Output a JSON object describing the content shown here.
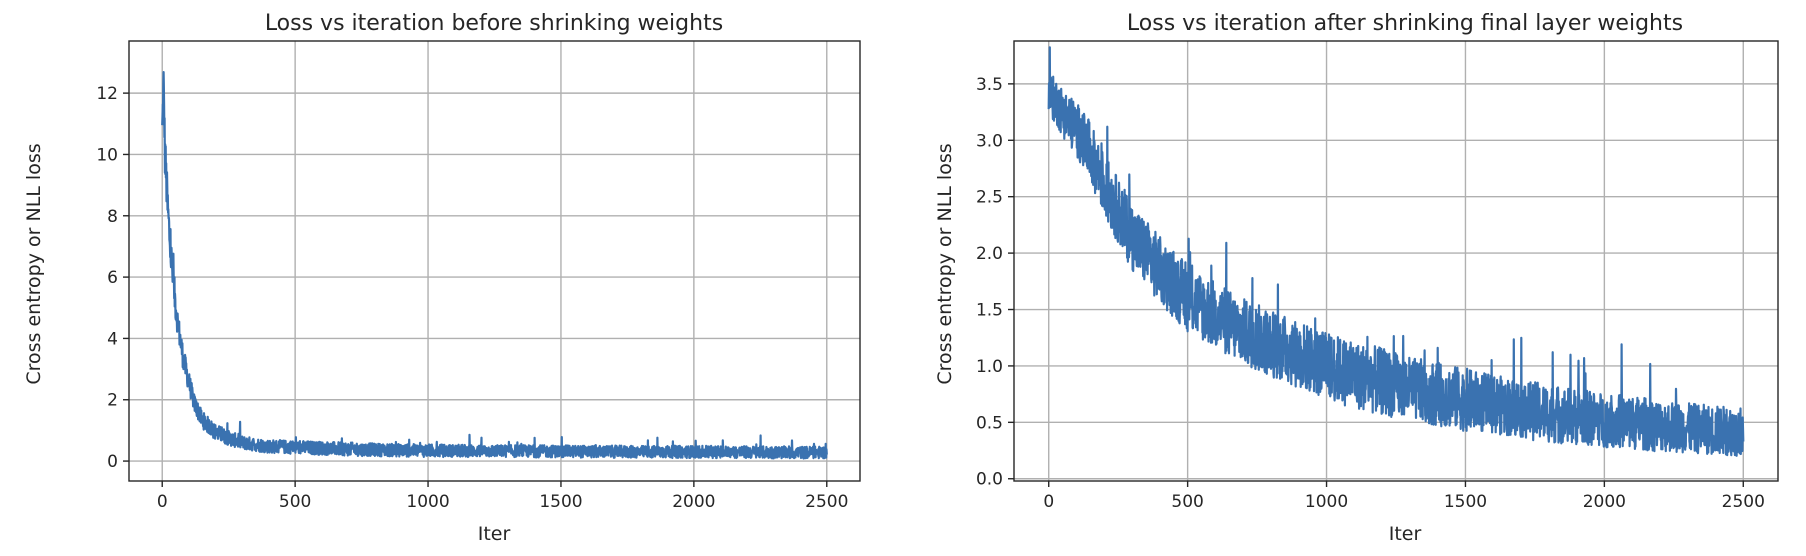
{
  "chart_data": [
    {
      "type": "line",
      "title": "Loss vs iteration before shrinking weights",
      "xlabel": "Iter",
      "ylabel": "Cross entropy or NLL loss",
      "xlim": [
        -125,
        2625
      ],
      "ylim": [
        -0.65,
        13.7
      ],
      "xticks": [
        0,
        500,
        1000,
        1500,
        2000,
        2500
      ],
      "xtick_labels": [
        "0",
        "500",
        "1000",
        "1500",
        "2000",
        "2500"
      ],
      "yticks": [
        0,
        2,
        4,
        6,
        8,
        10,
        12
      ],
      "ytick_labels": [
        "0",
        "2",
        "4",
        "6",
        "8",
        "10",
        "12"
      ],
      "grid": true,
      "color": "#3a72b0",
      "series": [
        {
          "x": [
            0,
            5,
            10,
            15,
            20,
            30,
            40,
            50,
            60,
            80,
            100,
            120,
            150,
            200,
            250,
            300,
            400,
            500,
            600,
            700,
            800,
            900,
            1000,
            1200,
            1400,
            1600,
            1800,
            2000,
            2200,
            2400,
            2500
          ],
          "values": [
            10.8,
            12.4,
            10.1,
            9.2,
            8.3,
            7.0,
            6.0,
            5.1,
            4.4,
            3.3,
            2.6,
            1.9,
            1.35,
            0.95,
            0.75,
            0.6,
            0.48,
            0.45,
            0.42,
            0.39,
            0.37,
            0.35,
            0.34,
            0.33,
            0.32,
            0.31,
            0.3,
            0.3,
            0.29,
            0.28,
            0.28
          ],
          "spread": [
            0.5,
            0.6,
            0.9,
            0.8,
            0.8,
            0.7,
            0.6,
            0.5,
            0.45,
            0.4,
            0.35,
            0.3,
            0.28,
            0.26,
            0.24,
            0.22,
            0.22,
            0.22,
            0.22,
            0.22,
            0.21,
            0.21,
            0.21,
            0.2,
            0.2,
            0.2,
            0.2,
            0.2,
            0.2,
            0.2,
            0.2
          ]
        }
      ]
    },
    {
      "type": "line",
      "title": "Loss vs iteration after shrinking final layer  weights",
      "xlabel": "Iter",
      "ylabel": "Cross entropy or NLL loss",
      "xlim": [
        -125,
        2625
      ],
      "ylim": [
        -0.02,
        3.88
      ],
      "xticks": [
        0,
        500,
        1000,
        1500,
        2000,
        2500
      ],
      "xtick_labels": [
        "0",
        "500",
        "1000",
        "1500",
        "2000",
        "2500"
      ],
      "yticks": [
        0.0,
        0.5,
        1.0,
        1.5,
        2.0,
        2.5,
        3.0,
        3.5
      ],
      "ytick_labels": [
        "0.0",
        "0.5",
        "1.0",
        "1.5",
        "2.0",
        "2.5",
        "3.0",
        "3.5"
      ],
      "grid": true,
      "color": "#3a72b0",
      "series": [
        {
          "x": [
            0,
            25,
            50,
            100,
            150,
            200,
            300,
            400,
            500,
            600,
            700,
            800,
            900,
            1000,
            1100,
            1200,
            1300,
            1400,
            1500,
            1600,
            1700,
            1800,
            1900,
            2000,
            2100,
            2200,
            2300,
            2400,
            2500
          ],
          "values": [
            3.4,
            3.35,
            3.25,
            3.1,
            2.9,
            2.6,
            2.15,
            1.85,
            1.6,
            1.45,
            1.3,
            1.2,
            1.1,
            1.0,
            0.92,
            0.86,
            0.8,
            0.75,
            0.7,
            0.66,
            0.62,
            0.58,
            0.55,
            0.52,
            0.5,
            0.47,
            0.45,
            0.43,
            0.42
          ],
          "spread": [
            0.2,
            0.2,
            0.22,
            0.24,
            0.26,
            0.28,
            0.3,
            0.3,
            0.3,
            0.3,
            0.3,
            0.3,
            0.3,
            0.3,
            0.3,
            0.3,
            0.28,
            0.28,
            0.28,
            0.26,
            0.26,
            0.26,
            0.25,
            0.24,
            0.24,
            0.23,
            0.22,
            0.22,
            0.22
          ]
        }
      ]
    }
  ]
}
